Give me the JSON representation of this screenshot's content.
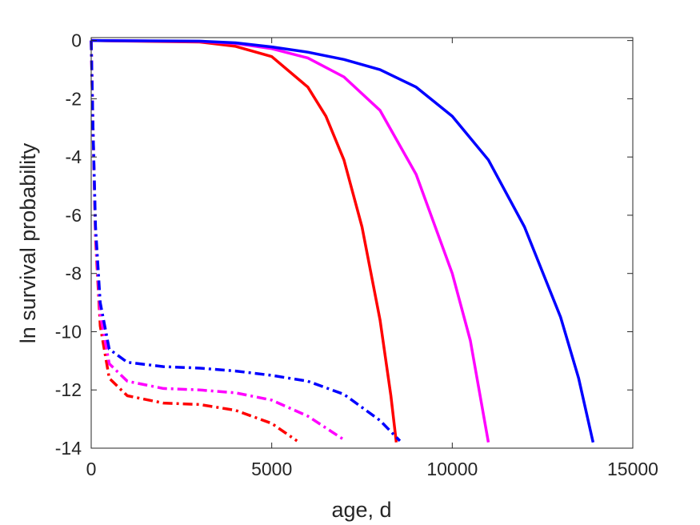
{
  "chart_data": {
    "type": "line",
    "xlabel": "age, d",
    "ylabel": "ln survival probability",
    "xlim": [
      0,
      15000
    ],
    "ylim": [
      -14,
      0.1
    ],
    "xticks": [
      0,
      5000,
      10000,
      15000
    ],
    "yticks": [
      -14,
      -12,
      -10,
      -8,
      -6,
      -4,
      -2,
      0
    ],
    "grid": false,
    "legend": "none",
    "series": [
      {
        "color": "#ff0000",
        "style": "solid",
        "points": [
          [
            0,
            0
          ],
          [
            3000,
            -0.05
          ],
          [
            4000,
            -0.2
          ],
          [
            5000,
            -0.55
          ],
          [
            6000,
            -1.6
          ],
          [
            6500,
            -2.6
          ],
          [
            7000,
            -4.1
          ],
          [
            7500,
            -6.4
          ],
          [
            8000,
            -9.6
          ],
          [
            8300,
            -12.2
          ],
          [
            8450,
            -13.8
          ]
        ]
      },
      {
        "color": "#ff00ff",
        "style": "solid",
        "points": [
          [
            0,
            0
          ],
          [
            3000,
            -0.03
          ],
          [
            4000,
            -0.1
          ],
          [
            5000,
            -0.28
          ],
          [
            6000,
            -0.6
          ],
          [
            7000,
            -1.25
          ],
          [
            8000,
            -2.4
          ],
          [
            9000,
            -4.6
          ],
          [
            10000,
            -8.0
          ],
          [
            10500,
            -10.3
          ],
          [
            11000,
            -13.8
          ]
        ]
      },
      {
        "color": "#0000ff",
        "style": "solid",
        "points": [
          [
            0,
            0
          ],
          [
            3000,
            -0.02
          ],
          [
            4000,
            -0.08
          ],
          [
            5000,
            -0.22
          ],
          [
            6000,
            -0.4
          ],
          [
            7000,
            -0.65
          ],
          [
            8000,
            -1.0
          ],
          [
            9000,
            -1.6
          ],
          [
            10000,
            -2.6
          ],
          [
            11000,
            -4.1
          ],
          [
            12000,
            -6.4
          ],
          [
            13000,
            -9.5
          ],
          [
            13500,
            -11.6
          ],
          [
            13900,
            -13.8
          ]
        ]
      },
      {
        "color": "#ff0000",
        "style": "dashdot",
        "points": [
          [
            0,
            0
          ],
          [
            50,
            -3
          ],
          [
            120,
            -6.8
          ],
          [
            250,
            -9.8
          ],
          [
            500,
            -11.6
          ],
          [
            1000,
            -12.2
          ],
          [
            2000,
            -12.45
          ],
          [
            3000,
            -12.5
          ],
          [
            4000,
            -12.7
          ],
          [
            5000,
            -13.15
          ],
          [
            5700,
            -13.75
          ]
        ]
      },
      {
        "color": "#ff00ff",
        "style": "dashdot",
        "points": [
          [
            0,
            0
          ],
          [
            50,
            -3
          ],
          [
            120,
            -6.6
          ],
          [
            250,
            -9.4
          ],
          [
            500,
            -11.1
          ],
          [
            1000,
            -11.7
          ],
          [
            2000,
            -11.95
          ],
          [
            3000,
            -12.0
          ],
          [
            4000,
            -12.1
          ],
          [
            5000,
            -12.35
          ],
          [
            6000,
            -12.9
          ],
          [
            7050,
            -13.75
          ]
        ]
      },
      {
        "color": "#0000ff",
        "style": "dashdot",
        "points": [
          [
            0,
            0
          ],
          [
            50,
            -3
          ],
          [
            120,
            -6.4
          ],
          [
            250,
            -9.0
          ],
          [
            500,
            -10.6
          ],
          [
            1000,
            -11.05
          ],
          [
            2000,
            -11.2
          ],
          [
            3000,
            -11.25
          ],
          [
            4000,
            -11.35
          ],
          [
            5000,
            -11.5
          ],
          [
            6000,
            -11.7
          ],
          [
            7000,
            -12.15
          ],
          [
            8000,
            -13.05
          ],
          [
            8550,
            -13.75
          ]
        ]
      }
    ]
  }
}
